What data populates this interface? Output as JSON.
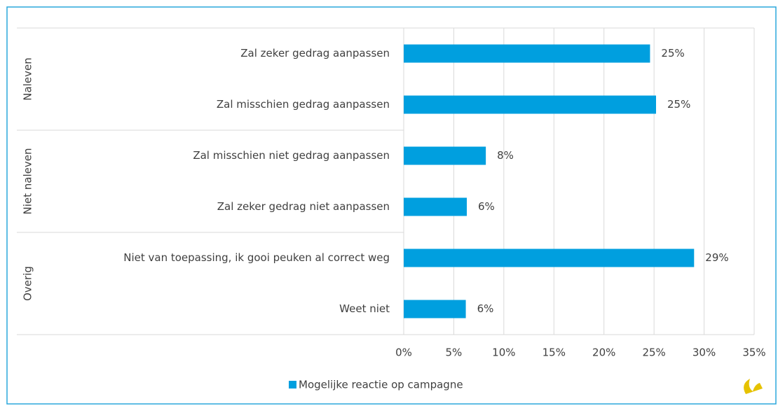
{
  "chart_data": {
    "type": "bar",
    "orientation": "horizontal",
    "groups": [
      {
        "name": "Naleven",
        "categories": [
          "Zal zeker gedrag aanpassen",
          "Zal misschien gedrag aanpassen"
        ]
      },
      {
        "name": "Niet naleven",
        "categories": [
          "Zal misschien niet gedrag aanpassen",
          "Zal zeker gedrag niet aanpassen"
        ]
      },
      {
        "name": "Overig",
        "categories": [
          "Niet van toepassing, ik gooi peuken al correct weg",
          "Weet niet"
        ]
      }
    ],
    "series": [
      {
        "name": "Mogelijke reactie op campagne",
        "color": "#009fdf",
        "values": [
          24.6,
          25.2,
          8.2,
          6.3,
          29.0,
          6.2
        ],
        "value_labels": [
          "25%",
          "25%",
          "8%",
          "6%",
          "29%",
          "6%"
        ]
      }
    ],
    "xlim": [
      0,
      35
    ],
    "xticks": [
      {
        "value": 0,
        "label": "0%"
      },
      {
        "value": 5,
        "label": "5%"
      },
      {
        "value": 10,
        "label": "10%"
      },
      {
        "value": 15,
        "label": "15%"
      },
      {
        "value": 20,
        "label": "20%"
      },
      {
        "value": 25,
        "label": "25%"
      },
      {
        "value": 30,
        "label": "30%"
      },
      {
        "value": 35,
        "label": "35%"
      }
    ],
    "grid": true,
    "legend": "bottom"
  }
}
